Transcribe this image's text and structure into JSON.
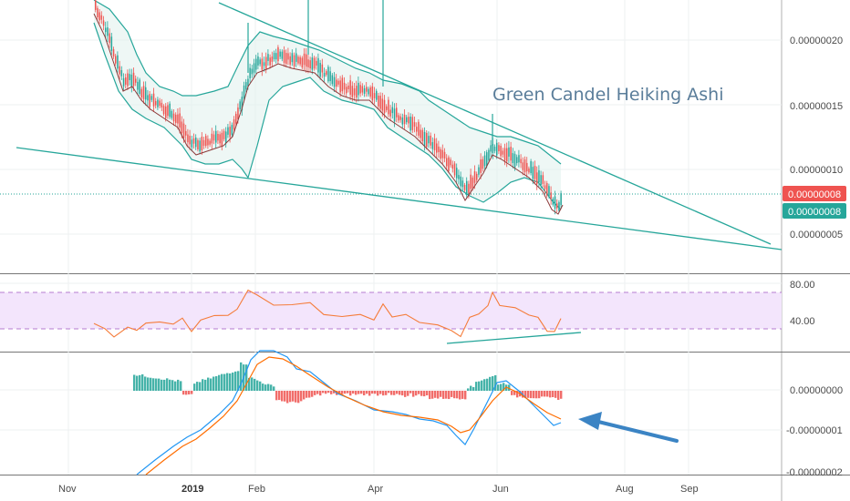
{
  "chart_data": [
    {
      "type": "candlestick",
      "panel": "price",
      "price_axis": {
        "ticks": [
          {
            "value": 2e-07,
            "label": "0.00000020"
          },
          {
            "value": 1.5e-07,
            "label": "0.00000015"
          },
          {
            "value": 1e-07,
            "label": "0.00000010"
          },
          {
            "value": 5e-08,
            "label": "0.00000005"
          }
        ],
        "ylim": [
          1.2e-08,
          2.45e-07
        ]
      },
      "badges": [
        {
          "label": "0.00000008",
          "value": 8e-08,
          "color": "#ef5350"
        },
        {
          "label": "0.00000008",
          "value": 6.3e-08,
          "color": "#26a69a"
        }
      ],
      "annotation": "Green Candel Heiking Ashi",
      "colors": {
        "up": "#26a69a",
        "down": "#ef5350",
        "band": "#26a69a",
        "trendline": "#26a69a"
      }
    },
    {
      "type": "line",
      "panel": "rsi",
      "ticks": [
        {
          "value": 80,
          "label": "80.00"
        },
        {
          "value": 40,
          "label": "40.00"
        }
      ],
      "band": [
        30,
        70
      ],
      "ylim": [
        10,
        88
      ],
      "colors": {
        "line": "#f57c3a",
        "band_fill": "#f3e5fc",
        "band_edge": "#b67bd1"
      }
    },
    {
      "type": "histogram",
      "panel": "macd",
      "ticks": [
        {
          "value": 0,
          "label": "0.00000000"
        },
        {
          "value": -1e-08,
          "label": "-0.00000001"
        },
        {
          "value": -2e-08,
          "label": "-0.00000002"
        }
      ],
      "colors": {
        "macd": "#2196f3",
        "signal": "#ff6d00",
        "hist_up": "#26a69a",
        "hist_down": "#ef5350"
      }
    }
  ],
  "x_axis": {
    "labels": [
      {
        "label": "Nov",
        "bold": false
      },
      {
        "label": "2019",
        "bold": true
      },
      {
        "label": "Feb",
        "bold": false
      },
      {
        "label": "Apr",
        "bold": false
      },
      {
        "label": "Jun",
        "bold": false
      },
      {
        "label": "Aug",
        "bold": false
      },
      {
        "label": "Sep",
        "bold": false
      }
    ]
  }
}
